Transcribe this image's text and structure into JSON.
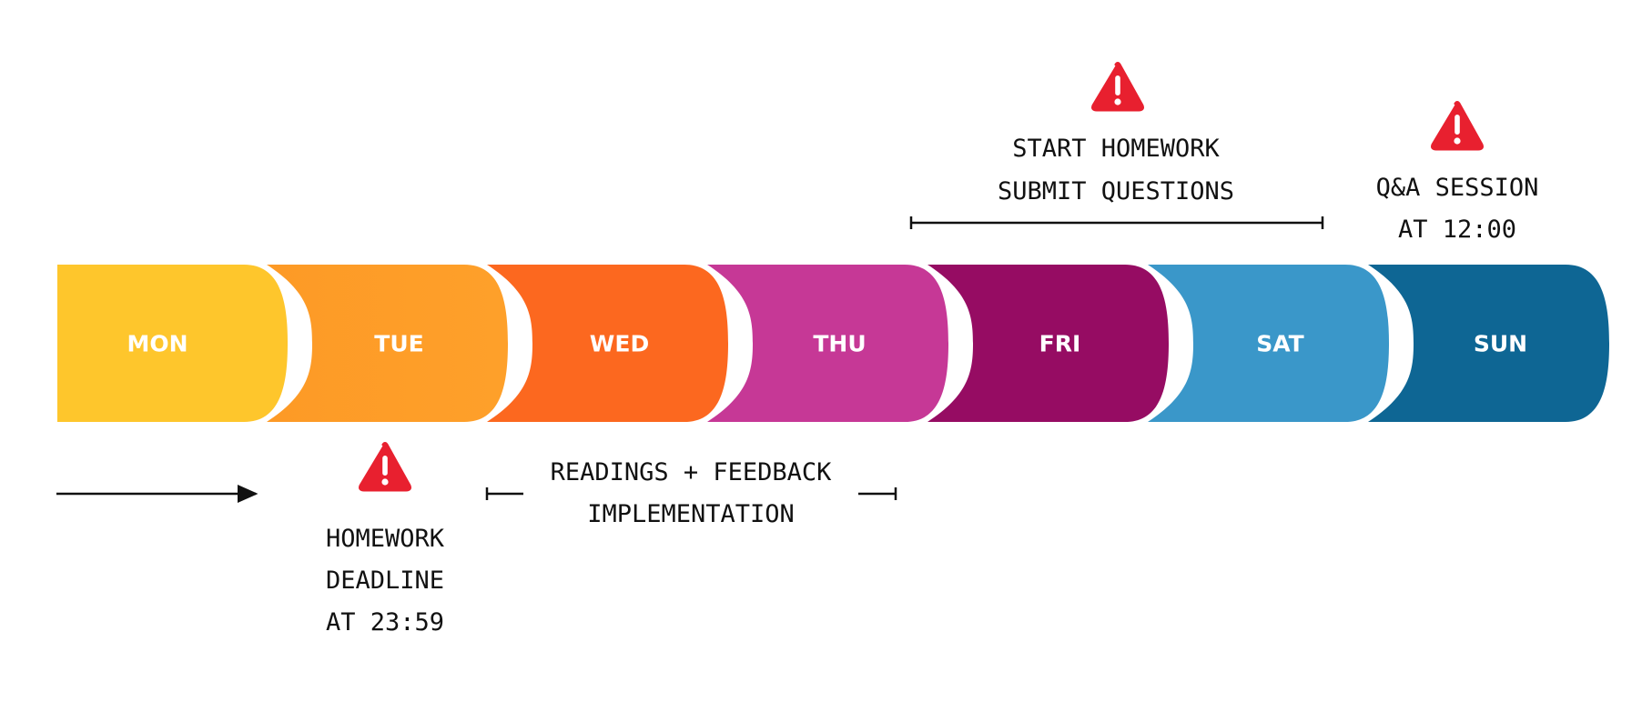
{
  "days": [
    {
      "label": "MON",
      "color": "#fec62c"
    },
    {
      "label": "TUE",
      "color": "#fd9a26",
      "color_end": "#fea02a"
    },
    {
      "label": "WED",
      "color": "#fc681f"
    },
    {
      "label": "THU",
      "color": "#c63896"
    },
    {
      "label": "FRI",
      "color": "#960c63"
    },
    {
      "label": "SAT",
      "color": "#3a97c9"
    },
    {
      "label": "SUN",
      "color": "#0e6694"
    }
  ],
  "annotations": {
    "friday_sat": {
      "lines": [
        "START HOMEWORK",
        "SUBMIT QUESTIONS"
      ],
      "icon": "warning-icon"
    },
    "sunday": {
      "lines": [
        "Q&A SESSION",
        "AT 12:00"
      ],
      "icon": "warning-icon"
    },
    "tuesday": {
      "lines": [
        "HOMEWORK",
        "DEADLINE",
        "AT 23:59"
      ],
      "icon": "warning-icon"
    },
    "wed_thu": {
      "lines": [
        "READINGS + FEEDBACK",
        "IMPLEMENTATION"
      ]
    }
  },
  "colors": {
    "warning": "#e8202f",
    "line": "#111111"
  }
}
